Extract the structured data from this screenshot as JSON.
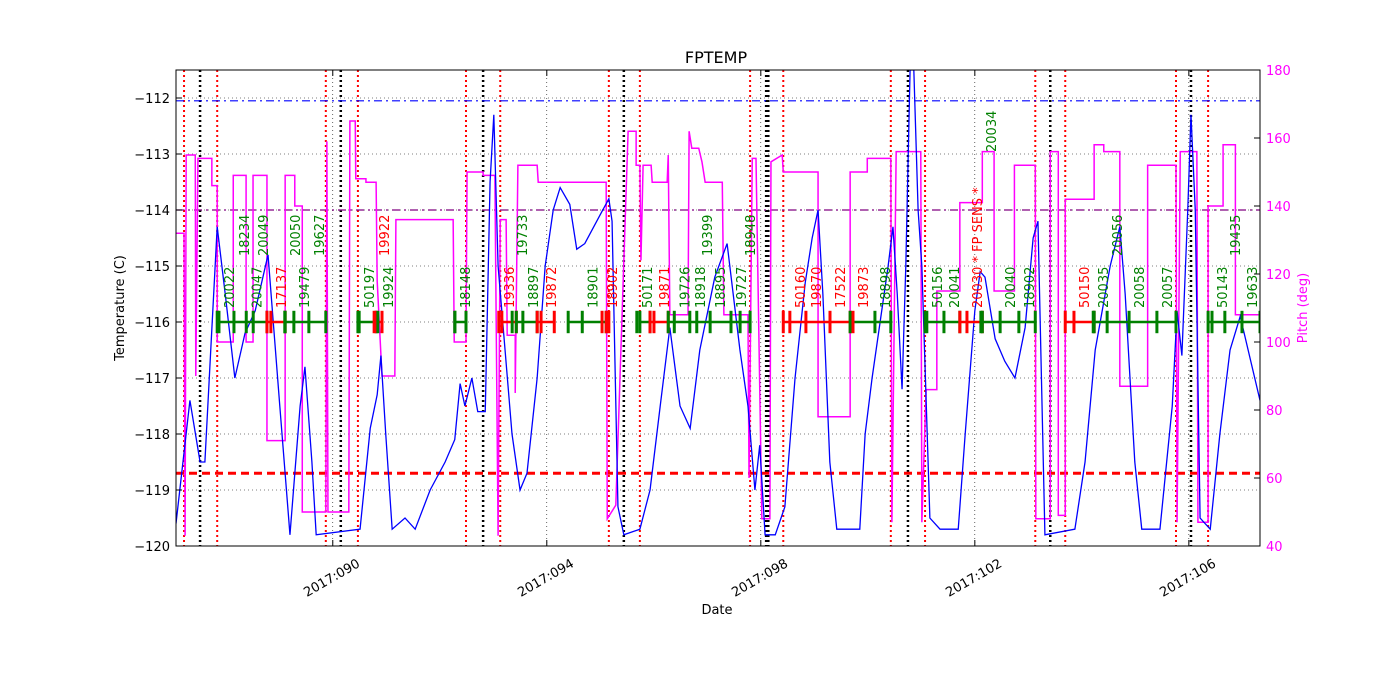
{
  "chart_data": {
    "type": "line",
    "title": "FPTEMP",
    "xlabel": "Date",
    "ylabel": "Temperature (C)",
    "y2label": "Pitch (deg)",
    "xlim": [
      87.07,
      107.33
    ],
    "ylim": [
      -120,
      -111.5
    ],
    "y2lim": [
      40,
      180
    ],
    "xticks": [
      {
        "v": 90,
        "label": "2017:090"
      },
      {
        "v": 94,
        "label": "2017:094"
      },
      {
        "v": 98,
        "label": "2017:098"
      },
      {
        "v": 102,
        "label": "2017:102"
      },
      {
        "v": 106,
        "label": "2017:106"
      }
    ],
    "yticks": [
      -120,
      -119,
      -118,
      -117,
      -116,
      -115,
      -114,
      -113,
      -112
    ],
    "y2ticks": [
      40,
      60,
      80,
      100,
      120,
      140,
      160,
      180
    ],
    "grid": true,
    "colors": {
      "temperature": "#0000ff",
      "pitch": "#ff00ff",
      "green": "#008000",
      "red": "#ff0000",
      "limit_high": "#0000ff",
      "limit_mid": "#800080",
      "limit_low": "#ff0000"
    },
    "hlines": [
      {
        "y": -112.05,
        "color": "#0000ff",
        "style": "dashdot"
      },
      {
        "y": -114,
        "color": "#800080",
        "style": "dashdot"
      },
      {
        "y": -118.7,
        "color": "#ff0000",
        "style": "dashed"
      }
    ],
    "red_vlines": [
      87.22,
      87.84,
      89.87,
      90.47,
      92.49,
      93.13,
      95.16,
      95.74,
      97.8,
      98.42,
      100.43,
      101.07,
      103.13,
      103.69,
      105.76,
      106.36
    ],
    "black_vlines": [
      87.52,
      90.15,
      92.81,
      95.44,
      98.1,
      98.14,
      100.75,
      103.41,
      106.04
    ],
    "segments": [
      [
        87.84,
        88.77,
        "green"
      ],
      [
        88.77,
        89.11,
        "red"
      ],
      [
        89.11,
        89.87,
        "green"
      ],
      [
        90.47,
        90.81,
        "green"
      ],
      [
        90.81,
        90.92,
        "red"
      ],
      [
        92.28,
        92.49,
        "green"
      ],
      [
        93.16,
        93.43,
        "red"
      ],
      [
        93.43,
        93.82,
        "green"
      ],
      [
        93.82,
        94.14,
        "red"
      ],
      [
        94.4,
        95.11,
        "green"
      ],
      [
        95.11,
        95.16,
        "red"
      ],
      [
        95.74,
        95.93,
        "green"
      ],
      [
        95.93,
        96.27,
        "red"
      ],
      [
        96.27,
        97.8,
        "green"
      ],
      [
        98.42,
        99.67,
        "red"
      ],
      [
        99.67,
        100.43,
        "green"
      ],
      [
        101.07,
        101.72,
        "green"
      ],
      [
        101.72,
        102.14,
        "red"
      ],
      [
        102.14,
        103.13,
        "green"
      ],
      [
        103.69,
        104.23,
        "red"
      ],
      [
        104.23,
        105.76,
        "green"
      ],
      [
        106.36,
        107.33,
        "green"
      ]
    ],
    "labels": [
      {
        "d": 88.06,
        "t": "20022",
        "c": "green"
      },
      {
        "d": 88.34,
        "t": "18234",
        "c": "green"
      },
      {
        "d": 88.57,
        "t": "20047",
        "c": "green"
      },
      {
        "d": 88.7,
        "t": "20049",
        "c": "green"
      },
      {
        "d": 89.03,
        "t": "17137",
        "c": "red"
      },
      {
        "d": 89.29,
        "t": "20050",
        "c": "green"
      },
      {
        "d": 89.46,
        "t": "19479",
        "c": "green"
      },
      {
        "d": 89.74,
        "t": "19627",
        "c": "green"
      },
      {
        "d": 90.68,
        "t": "50197",
        "c": "green"
      },
      {
        "d": 90.96,
        "t": "19922",
        "c": "red"
      },
      {
        "d": 91.03,
        "t": "19924",
        "c": "green"
      },
      {
        "d": 92.47,
        "t": "18148",
        "c": "green"
      },
      {
        "d": 93.29,
        "t": "19336",
        "c": "red"
      },
      {
        "d": 93.54,
        "t": "19733",
        "c": "green"
      },
      {
        "d": 93.74,
        "t": "18897",
        "c": "green"
      },
      {
        "d": 94.08,
        "t": "19872",
        "c": "red"
      },
      {
        "d": 94.85,
        "t": "18901",
        "c": "green"
      },
      {
        "d": 95.22,
        "t": "18902",
        "c": "red"
      },
      {
        "d": 95.87,
        "t": "50171",
        "c": "green"
      },
      {
        "d": 96.19,
        "t": "19871",
        "c": "red"
      },
      {
        "d": 96.57,
        "t": "19726",
        "c": "green"
      },
      {
        "d": 96.86,
        "t": "18918",
        "c": "green"
      },
      {
        "d": 96.99,
        "t": "19399",
        "c": "green"
      },
      {
        "d": 97.24,
        "t": "18895",
        "c": "green"
      },
      {
        "d": 97.63,
        "t": "19727",
        "c": "green"
      },
      {
        "d": 97.8,
        "t": "18948",
        "c": "green"
      },
      {
        "d": 98.73,
        "t": "50160",
        "c": "red"
      },
      {
        "d": 99.03,
        "t": "19870",
        "c": "red"
      },
      {
        "d": 99.48,
        "t": "17522",
        "c": "red"
      },
      {
        "d": 99.91,
        "t": "19873",
        "c": "red"
      },
      {
        "d": 100.32,
        "t": "18898",
        "c": "green"
      },
      {
        "d": 101.29,
        "t": "50156",
        "c": "green"
      },
      {
        "d": 101.61,
        "t": "20041",
        "c": "green"
      },
      {
        "d": 102.04,
        "t": "20030 * FP SENS *",
        "c": "red"
      },
      {
        "d": 102.3,
        "t": "20034",
        "c": "green"
      },
      {
        "d": 102.66,
        "t": "20040",
        "c": "green"
      },
      {
        "d": 103.01,
        "t": "18902",
        "c": "green"
      },
      {
        "d": 104.04,
        "t": "50150",
        "c": "red"
      },
      {
        "d": 104.4,
        "t": "20035",
        "c": "green"
      },
      {
        "d": 104.66,
        "t": "20056",
        "c": "green"
      },
      {
        "d": 105.07,
        "t": "20058",
        "c": "green"
      },
      {
        "d": 105.59,
        "t": "20057",
        "c": "green"
      },
      {
        "d": 106.62,
        "t": "50143",
        "c": "green"
      },
      {
        "d": 106.86,
        "t": "19435",
        "c": "green"
      },
      {
        "d": 107.18,
        "t": "19633",
        "c": "green"
      }
    ],
    "temperature": [
      [
        87.07,
        -119.6
      ],
      [
        87.33,
        -117.4
      ],
      [
        87.52,
        -118.5
      ],
      [
        87.61,
        -118.5
      ],
      [
        87.84,
        -114.3
      ],
      [
        87.99,
        -115.5
      ],
      [
        88.17,
        -117.0
      ],
      [
        88.36,
        -116.2
      ],
      [
        88.55,
        -115.8
      ],
      [
        88.79,
        -114.8
      ],
      [
        89.01,
        -117.5
      ],
      [
        89.2,
        -119.8
      ],
      [
        89.39,
        -117.5
      ],
      [
        89.48,
        -116.8
      ],
      [
        89.61,
        -118.5
      ],
      [
        89.69,
        -119.8
      ],
      [
        90.51,
        -119.7
      ],
      [
        90.7,
        -117.9
      ],
      [
        90.83,
        -117.3
      ],
      [
        90.9,
        -116.6
      ],
      [
        90.99,
        -118.0
      ],
      [
        91.11,
        -119.7
      ],
      [
        91.35,
        -119.5
      ],
      [
        91.54,
        -119.7
      ],
      [
        91.82,
        -119.0
      ],
      [
        92.1,
        -118.5
      ],
      [
        92.28,
        -118.1
      ],
      [
        92.38,
        -117.1
      ],
      [
        92.47,
        -117.5
      ],
      [
        92.6,
        -117.0
      ],
      [
        92.71,
        -117.6
      ],
      [
        92.85,
        -117.6
      ],
      [
        92.94,
        -113.5
      ],
      [
        93.01,
        -112.3
      ],
      [
        93.09,
        -115.0
      ],
      [
        93.22,
        -116.5
      ],
      [
        93.35,
        -118.0
      ],
      [
        93.5,
        -119.0
      ],
      [
        93.63,
        -118.7
      ],
      [
        93.82,
        -117.0
      ],
      [
        93.97,
        -115.0
      ],
      [
        94.12,
        -114.0
      ],
      [
        94.25,
        -113.6
      ],
      [
        94.43,
        -113.9
      ],
      [
        94.56,
        -114.7
      ],
      [
        94.71,
        -114.6
      ],
      [
        94.99,
        -114.1
      ],
      [
        95.16,
        -113.8
      ],
      [
        95.22,
        -114.2
      ],
      [
        95.33,
        -119.3
      ],
      [
        95.44,
        -119.8
      ],
      [
        95.74,
        -119.7
      ],
      [
        95.93,
        -119.0
      ],
      [
        96.12,
        -117.5
      ],
      [
        96.3,
        -116.1
      ],
      [
        96.49,
        -117.5
      ],
      [
        96.68,
        -117.9
      ],
      [
        96.86,
        -116.5
      ],
      [
        97.14,
        -115.2
      ],
      [
        97.37,
        -114.6
      ],
      [
        97.61,
        -116.5
      ],
      [
        97.76,
        -117.5
      ],
      [
        97.89,
        -119.0
      ],
      [
        97.98,
        -118.2
      ],
      [
        98.08,
        -119.8
      ],
      [
        98.27,
        -119.8
      ],
      [
        98.45,
        -119.3
      ],
      [
        98.64,
        -117.0
      ],
      [
        98.83,
        -115.3
      ],
      [
        98.96,
        -114.5
      ],
      [
        99.07,
        -114.0
      ],
      [
        99.16,
        -115.5
      ],
      [
        99.29,
        -118.5
      ],
      [
        99.42,
        -119.7
      ],
      [
        99.85,
        -119.7
      ],
      [
        99.95,
        -118.0
      ],
      [
        100.08,
        -117.0
      ],
      [
        100.23,
        -116.0
      ],
      [
        100.38,
        -115.0
      ],
      [
        100.47,
        -114.3
      ],
      [
        100.55,
        -115.5
      ],
      [
        100.64,
        -117.2
      ],
      [
        100.71,
        -115.0
      ],
      [
        100.79,
        -111.5
      ],
      [
        100.86,
        -111.5
      ],
      [
        100.94,
        -114.0
      ],
      [
        101.01,
        -115.0
      ],
      [
        101.16,
        -119.5
      ],
      [
        101.35,
        -119.7
      ],
      [
        101.69,
        -119.7
      ],
      [
        101.82,
        -118.0
      ],
      [
        102.0,
        -115.8
      ],
      [
        102.1,
        -115.1
      ],
      [
        102.19,
        -115.2
      ],
      [
        102.38,
        -116.3
      ],
      [
        102.56,
        -116.7
      ],
      [
        102.75,
        -117.0
      ],
      [
        102.94,
        -116.1
      ],
      [
        103.09,
        -114.5
      ],
      [
        103.18,
        -114.2
      ],
      [
        103.31,
        -119.8
      ],
      [
        103.87,
        -119.7
      ],
      [
        104.06,
        -118.5
      ],
      [
        104.25,
        -116.5
      ],
      [
        104.53,
        -115.0
      ],
      [
        104.71,
        -114.3
      ],
      [
        104.81,
        -115.5
      ],
      [
        104.99,
        -118.5
      ],
      [
        105.12,
        -119.7
      ],
      [
        105.46,
        -119.7
      ],
      [
        105.69,
        -117.5
      ],
      [
        105.78,
        -115.8
      ],
      [
        105.87,
        -116.6
      ],
      [
        105.98,
        -114.0
      ],
      [
        106.04,
        -112.3
      ],
      [
        106.12,
        -114.0
      ],
      [
        106.21,
        -119.5
      ],
      [
        106.4,
        -119.7
      ],
      [
        106.58,
        -118.0
      ],
      [
        106.77,
        -116.5
      ],
      [
        106.96,
        -115.9
      ],
      [
        107.33,
        -117.4
      ]
    ],
    "pitch": [
      [
        87.07,
        132
      ],
      [
        87.22,
        132
      ],
      [
        87.24,
        43
      ],
      [
        87.26,
        155
      ],
      [
        87.43,
        155
      ],
      [
        87.44,
        90
      ],
      [
        87.48,
        154
      ],
      [
        87.74,
        154
      ],
      [
        87.74,
        146
      ],
      [
        87.84,
        146
      ],
      [
        87.84,
        100
      ],
      [
        88.14,
        100
      ],
      [
        88.14,
        149
      ],
      [
        88.38,
        149
      ],
      [
        88.38,
        100
      ],
      [
        88.51,
        100
      ],
      [
        88.51,
        149
      ],
      [
        88.77,
        149
      ],
      [
        88.77,
        71
      ],
      [
        89.11,
        71
      ],
      [
        89.11,
        149
      ],
      [
        89.29,
        149
      ],
      [
        89.29,
        140
      ],
      [
        89.43,
        140
      ],
      [
        89.43,
        50
      ],
      [
        89.87,
        50
      ],
      [
        89.89,
        159
      ],
      [
        89.91,
        50
      ],
      [
        90.3,
        50
      ],
      [
        90.32,
        165
      ],
      [
        90.42,
        165
      ],
      [
        90.43,
        148
      ],
      [
        90.62,
        148
      ],
      [
        90.62,
        147
      ],
      [
        90.81,
        147
      ],
      [
        90.83,
        118
      ],
      [
        90.92,
        90
      ],
      [
        91.16,
        90
      ],
      [
        91.18,
        136
      ],
      [
        92.25,
        136
      ],
      [
        92.27,
        100
      ],
      [
        92.49,
        100
      ],
      [
        92.51,
        150
      ],
      [
        92.81,
        150
      ],
      [
        92.81,
        149
      ],
      [
        93.03,
        149
      ],
      [
        93.09,
        43
      ],
      [
        93.13,
        136
      ],
      [
        93.24,
        136
      ],
      [
        93.26,
        102
      ],
      [
        93.41,
        102
      ],
      [
        93.41,
        85
      ],
      [
        93.46,
        152
      ],
      [
        93.82,
        152
      ],
      [
        93.84,
        147
      ],
      [
        95.11,
        147
      ],
      [
        95.13,
        48
      ],
      [
        95.29,
        52
      ],
      [
        95.52,
        162
      ],
      [
        95.67,
        162
      ],
      [
        95.67,
        152
      ],
      [
        95.74,
        152
      ],
      [
        95.76,
        124
      ],
      [
        95.8,
        152
      ],
      [
        95.95,
        152
      ],
      [
        95.97,
        147
      ],
      [
        96.25,
        147
      ],
      [
        96.27,
        155
      ],
      [
        96.3,
        108
      ],
      [
        96.64,
        108
      ],
      [
        96.66,
        162
      ],
      [
        96.71,
        157
      ],
      [
        96.84,
        157
      ],
      [
        96.9,
        153
      ],
      [
        96.96,
        147
      ],
      [
        97.28,
        147
      ],
      [
        97.31,
        108
      ],
      [
        97.76,
        108
      ],
      [
        97.78,
        60
      ],
      [
        97.84,
        154
      ],
      [
        97.91,
        154
      ],
      [
        98.02,
        48
      ],
      [
        98.17,
        48
      ],
      [
        98.19,
        153
      ],
      [
        98.4,
        155
      ],
      [
        98.42,
        150
      ],
      [
        99.07,
        150
      ],
      [
        99.07,
        78
      ],
      [
        99.67,
        78
      ],
      [
        99.67,
        150
      ],
      [
        99.99,
        150
      ],
      [
        99.99,
        154
      ],
      [
        100.43,
        154
      ],
      [
        100.45,
        47
      ],
      [
        100.53,
        156
      ],
      [
        100.99,
        156
      ],
      [
        101.01,
        47
      ],
      [
        101.09,
        86
      ],
      [
        101.29,
        86
      ],
      [
        101.29,
        115
      ],
      [
        101.72,
        115
      ],
      [
        101.72,
        141
      ],
      [
        102.14,
        141
      ],
      [
        102.14,
        156
      ],
      [
        102.36,
        156
      ],
      [
        102.36,
        115
      ],
      [
        102.74,
        115
      ],
      [
        102.74,
        152
      ],
      [
        103.13,
        152
      ],
      [
        103.14,
        48
      ],
      [
        103.41,
        48
      ],
      [
        103.41,
        156
      ],
      [
        103.56,
        156
      ],
      [
        103.56,
        49
      ],
      [
        103.69,
        49
      ],
      [
        103.69,
        142
      ],
      [
        104.23,
        142
      ],
      [
        104.23,
        158
      ],
      [
        104.41,
        158
      ],
      [
        104.41,
        156
      ],
      [
        104.71,
        156
      ],
      [
        104.71,
        87
      ],
      [
        105.23,
        87
      ],
      [
        105.23,
        152
      ],
      [
        105.76,
        152
      ],
      [
        105.78,
        47
      ],
      [
        105.84,
        156
      ],
      [
        106.15,
        156
      ],
      [
        106.17,
        47
      ],
      [
        106.36,
        47
      ],
      [
        106.36,
        140
      ],
      [
        106.64,
        140
      ],
      [
        106.64,
        158
      ],
      [
        106.87,
        158
      ],
      [
        106.87,
        108
      ],
      [
        107.33,
        108
      ]
    ]
  }
}
